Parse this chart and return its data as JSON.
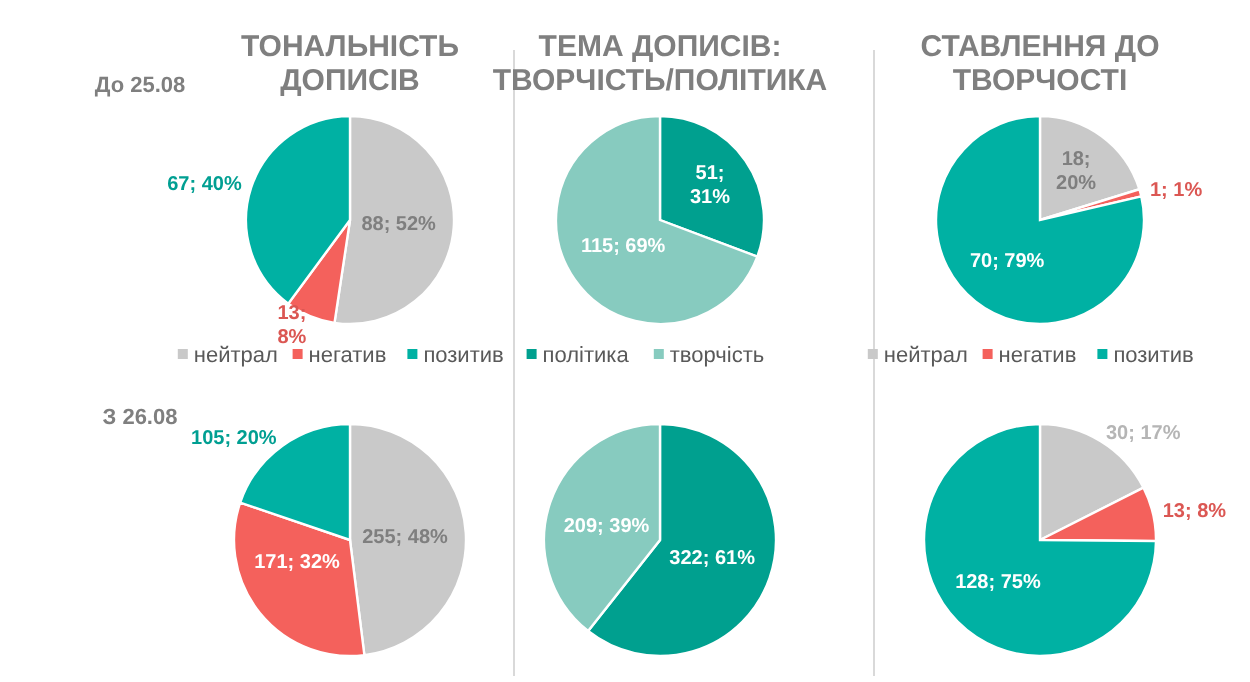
{
  "chart_data": [
    {
      "type": "pie",
      "title": "ТОНАЛЬНІСТЬ\nДОПИСІВ",
      "annotations": [
        "До 25.08"
      ],
      "categories": [
        "нейтрал",
        "негатив",
        "позитив"
      ],
      "values": [
        88,
        13,
        67
      ],
      "value_labels": [
        "88; 52%",
        "13;\n8%",
        "67; 40%"
      ],
      "colors": [
        "#c9c9c9",
        "#f4615c",
        "#00b1a3"
      ],
      "legend": "bottom"
    },
    {
      "type": "pie",
      "title": "ТЕМА ДОПИСІВ:\nТВОРЧІСТЬ/ПОЛІТИКА",
      "categories": [
        "політика",
        "творчість"
      ],
      "values": [
        51,
        115
      ],
      "value_labels": [
        "51;\n31%",
        "115; 69%"
      ],
      "colors": [
        "#00a08f",
        "#87cbbf"
      ],
      "legend": "bottom"
    },
    {
      "type": "pie",
      "title": "СТАВЛЕННЯ ДО\nТВОРЧОСТІ",
      "categories": [
        "нейтрал",
        "негатив",
        "позитив"
      ],
      "values": [
        18,
        1,
        70
      ],
      "value_labels": [
        "18;\n20%",
        "1; 1%",
        "70; 79%"
      ],
      "colors": [
        "#c9c9c9",
        "#f4615c",
        "#00b1a3"
      ],
      "legend": "bottom"
    },
    {
      "type": "pie",
      "annotations": [
        "З 26.08"
      ],
      "categories": [
        null,
        null,
        null
      ],
      "values": [
        255,
        171,
        105
      ],
      "value_labels": [
        "255; 48%",
        "171; 32%",
        "105; 20%"
      ],
      "colors": [
        "#c9c9c9",
        "#f4615c",
        "#00b1a3"
      ]
    },
    {
      "type": "pie",
      "categories": [
        null,
        null
      ],
      "values": [
        322,
        209
      ],
      "value_labels": [
        "322; 61%",
        "209; 39%"
      ],
      "colors": [
        "#00a08f",
        "#87cbbf"
      ]
    },
    {
      "type": "pie",
      "categories": [
        null,
        null,
        null
      ],
      "values": [
        30,
        13,
        128
      ],
      "value_labels": [
        "30; 17%",
        "13; 8%",
        "128; 75%"
      ],
      "colors": [
        "#c9c9c9",
        "#f4615c",
        "#00b1a3"
      ]
    }
  ]
}
